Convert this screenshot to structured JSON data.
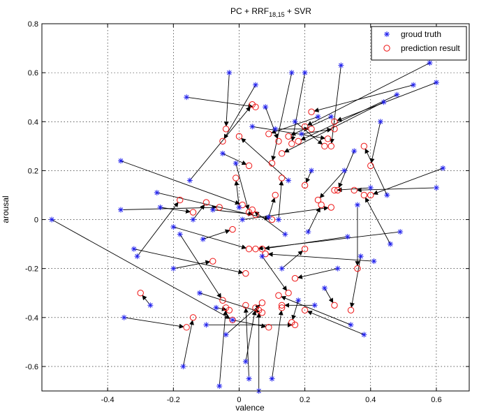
{
  "chart_data": {
    "type": "scatter",
    "title": "PC + RRF",
    "title_sub": "18,15",
    "title_suffix": " + SVR",
    "xlabel": "valence",
    "ylabel": "arousal",
    "xlim": [
      -0.6,
      0.7
    ],
    "ylim": [
      -0.7,
      0.8
    ],
    "xticks": [
      -0.4,
      -0.2,
      0,
      0.2,
      0.4,
      0.6
    ],
    "yticks": [
      -0.6,
      -0.4,
      -0.2,
      0,
      0.2,
      0.4,
      0.6,
      0.8
    ],
    "grid": true,
    "legend_position": "top-right",
    "colors": {
      "truth": "#2222ee",
      "prediction": "#ee1111",
      "arrow": "#000000"
    },
    "series": [
      {
        "name": "groud truth",
        "marker": "star"
      },
      {
        "name": "prediction result",
        "marker": "circle"
      }
    ],
    "pairs": [
      {
        "truth": [
          -0.57,
          0.0
        ],
        "pred": [
          -0.02,
          -0.41
        ]
      },
      {
        "truth": [
          -0.36,
          0.24
        ],
        "pred": [
          0.01,
          0.06
        ]
      },
      {
        "truth": [
          -0.36,
          0.04
        ],
        "pred": [
          -0.06,
          0.05
        ]
      },
      {
        "truth": [
          -0.35,
          -0.4
        ],
        "pred": [
          -0.16,
          -0.44
        ]
      },
      {
        "truth": [
          -0.32,
          -0.12
        ],
        "pred": [
          0.02,
          -0.22
        ]
      },
      {
        "truth": [
          -0.31,
          -0.15
        ],
        "pred": [
          -0.18,
          0.08
        ]
      },
      {
        "truth": [
          -0.27,
          -0.35
        ],
        "pred": [
          -0.3,
          -0.3
        ]
      },
      {
        "truth": [
          -0.25,
          0.11
        ],
        "pred": [
          0.1,
          0.0
        ]
      },
      {
        "truth": [
          -0.24,
          0.05
        ],
        "pred": [
          -0.14,
          0.03
        ]
      },
      {
        "truth": [
          -0.2,
          -0.03
        ],
        "pred": [
          0.03,
          -0.12
        ]
      },
      {
        "truth": [
          -0.2,
          -0.2
        ],
        "pred": [
          -0.08,
          -0.17
        ]
      },
      {
        "truth": [
          -0.18,
          -0.06
        ],
        "pred": [
          -0.05,
          -0.33
        ]
      },
      {
        "truth": [
          -0.17,
          -0.6
        ],
        "pred": [
          -0.14,
          -0.4
        ]
      },
      {
        "truth": [
          -0.16,
          0.5
        ],
        "pred": [
          0.05,
          0.46
        ]
      },
      {
        "truth": [
          -0.15,
          0.16
        ],
        "pred": [
          0.04,
          0.47
        ]
      },
      {
        "truth": [
          -0.14,
          0.0
        ],
        "pred": [
          -0.1,
          0.07
        ]
      },
      {
        "truth": [
          -0.12,
          -0.3
        ],
        "pred": [
          0.07,
          -0.38
        ]
      },
      {
        "truth": [
          -0.11,
          -0.08
        ],
        "pred": [
          -0.02,
          -0.04
        ]
      },
      {
        "truth": [
          -0.1,
          -0.43
        ],
        "pred": [
          0.17,
          -0.43
        ]
      },
      {
        "truth": [
          -0.08,
          0.04
        ],
        "pred": [
          0.05,
          0.02
        ]
      },
      {
        "truth": [
          -0.07,
          -0.36
        ],
        "pred": [
          -0.03,
          -0.37
        ]
      },
      {
        "truth": [
          -0.06,
          -0.68
        ],
        "pred": [
          -0.04,
          -0.36
        ]
      },
      {
        "truth": [
          -0.05,
          0.27
        ],
        "pred": [
          0.03,
          0.22
        ]
      },
      {
        "truth": [
          -0.04,
          -0.47
        ],
        "pred": [
          0.07,
          -0.34
        ]
      },
      {
        "truth": [
          -0.03,
          0.6
        ],
        "pred": [
          -0.04,
          0.37
        ]
      },
      {
        "truth": [
          -0.02,
          -0.41
        ],
        "pred": [
          0.09,
          -0.44
        ]
      },
      {
        "truth": [
          -0.01,
          0.23
        ],
        "pred": [
          0.03,
          0.03
        ]
      },
      {
        "truth": [
          0.0,
          0.05
        ],
        "pred": [
          -0.01,
          0.17
        ]
      },
      {
        "truth": [
          0.01,
          0.0
        ],
        "pred": [
          0.28,
          0.05
        ]
      },
      {
        "truth": [
          0.02,
          -0.58
        ],
        "pred": [
          0.05,
          -0.36
        ]
      },
      {
        "truth": [
          0.03,
          -0.65
        ],
        "pred": [
          0.02,
          -0.35
        ]
      },
      {
        "truth": [
          0.04,
          0.38
        ],
        "pred": [
          0.27,
          0.33
        ]
      },
      {
        "truth": [
          0.05,
          0.55
        ],
        "pred": [
          -0.05,
          0.32
        ]
      },
      {
        "truth": [
          0.06,
          -0.7
        ],
        "pred": [
          0.06,
          -0.37
        ]
      },
      {
        "truth": [
          0.07,
          -0.15
        ],
        "pred": [
          0.15,
          -0.3
        ]
      },
      {
        "truth": [
          0.08,
          0.46
        ],
        "pred": [
          0.12,
          0.32
        ]
      },
      {
        "truth": [
          0.09,
          0.01
        ],
        "pred": [
          0.11,
          0.1
        ]
      },
      {
        "truth": [
          0.1,
          -0.65
        ],
        "pred": [
          0.13,
          -0.36
        ]
      },
      {
        "truth": [
          0.11,
          0.37
        ],
        "pred": [
          0.22,
          0.37
        ]
      },
      {
        "truth": [
          0.12,
          0.0
        ],
        "pred": [
          0.13,
          0.17
        ]
      },
      {
        "truth": [
          0.13,
          -0.2
        ],
        "pred": [
          0.2,
          -0.12
        ]
      },
      {
        "truth": [
          0.14,
          -0.06
        ],
        "pred": [
          0.04,
          0.04
        ]
      },
      {
        "truth": [
          0.15,
          0.16
        ],
        "pred": [
          0.0,
          0.34
        ]
      },
      {
        "truth": [
          0.16,
          0.6
        ],
        "pred": [
          0.1,
          0.23
        ]
      },
      {
        "truth": [
          0.17,
          0.4
        ],
        "pred": [
          0.26,
          0.3
        ]
      },
      {
        "truth": [
          0.18,
          -0.33
        ],
        "pred": [
          0.16,
          -0.42
        ]
      },
      {
        "truth": [
          0.19,
          0.35
        ],
        "pred": [
          0.29,
          0.37
        ]
      },
      {
        "truth": [
          0.2,
          0.6
        ],
        "pred": [
          0.16,
          0.31
        ]
      },
      {
        "truth": [
          0.21,
          -0.05
        ],
        "pred": [
          0.25,
          0.06
        ]
      },
      {
        "truth": [
          0.22,
          0.2
        ],
        "pred": [
          0.2,
          0.14
        ]
      },
      {
        "truth": [
          0.23,
          -0.35
        ],
        "pred": [
          0.13,
          -0.35
        ]
      },
      {
        "truth": [
          0.24,
          0.42
        ],
        "pred": [
          0.09,
          0.35
        ]
      },
      {
        "truth": [
          0.26,
          -0.28
        ],
        "pred": [
          0.29,
          -0.35
        ]
      },
      {
        "truth": [
          0.28,
          0.42
        ],
        "pred": [
          0.15,
          0.34
        ]
      },
      {
        "truth": [
          0.3,
          -0.2
        ],
        "pred": [
          0.17,
          -0.24
        ]
      },
      {
        "truth": [
          0.31,
          0.63
        ],
        "pred": [
          0.28,
          0.3
        ]
      },
      {
        "truth": [
          0.32,
          0.2
        ],
        "pred": [
          0.24,
          0.08
        ]
      },
      {
        "truth": [
          0.33,
          -0.07
        ],
        "pred": [
          0.07,
          -0.12
        ]
      },
      {
        "truth": [
          0.34,
          -0.43
        ],
        "pred": [
          0.12,
          -0.31
        ]
      },
      {
        "truth": [
          0.35,
          0.28
        ],
        "pred": [
          0.3,
          0.12
        ]
      },
      {
        "truth": [
          0.36,
          0.06
        ],
        "pred": [
          0.36,
          -0.2
        ]
      },
      {
        "truth": [
          0.37,
          -0.15
        ],
        "pred": [
          0.34,
          -0.37
        ]
      },
      {
        "truth": [
          0.38,
          -0.47
        ],
        "pred": [
          0.2,
          -0.37
        ]
      },
      {
        "truth": [
          0.4,
          0.13
        ],
        "pred": [
          0.29,
          0.12
        ]
      },
      {
        "truth": [
          0.41,
          -0.17
        ],
        "pred": [
          0.08,
          -0.14
        ]
      },
      {
        "truth": [
          0.43,
          0.4
        ],
        "pred": [
          0.4,
          0.22
        ]
      },
      {
        "truth": [
          0.44,
          0.48
        ],
        "pred": [
          0.13,
          0.27
        ]
      },
      {
        "truth": [
          0.45,
          0.1
        ],
        "pred": [
          0.38,
          0.3
        ]
      },
      {
        "truth": [
          0.46,
          -0.1
        ],
        "pred": [
          0.38,
          0.1
        ]
      },
      {
        "truth": [
          0.48,
          0.51
        ],
        "pred": [
          0.18,
          0.32
        ]
      },
      {
        "truth": [
          0.49,
          -0.05
        ],
        "pred": [
          0.05,
          -0.12
        ]
      },
      {
        "truth": [
          0.53,
          0.55
        ],
        "pred": [
          0.22,
          0.44
        ]
      },
      {
        "truth": [
          0.58,
          0.64
        ],
        "pred": [
          0.2,
          0.38
        ]
      },
      {
        "truth": [
          0.6,
          0.56
        ],
        "pred": [
          0.29,
          0.4
        ]
      },
      {
        "truth": [
          0.6,
          0.13
        ],
        "pred": [
          0.35,
          0.12
        ]
      },
      {
        "truth": [
          0.62,
          0.21
        ],
        "pred": [
          0.4,
          0.1
        ]
      }
    ]
  }
}
